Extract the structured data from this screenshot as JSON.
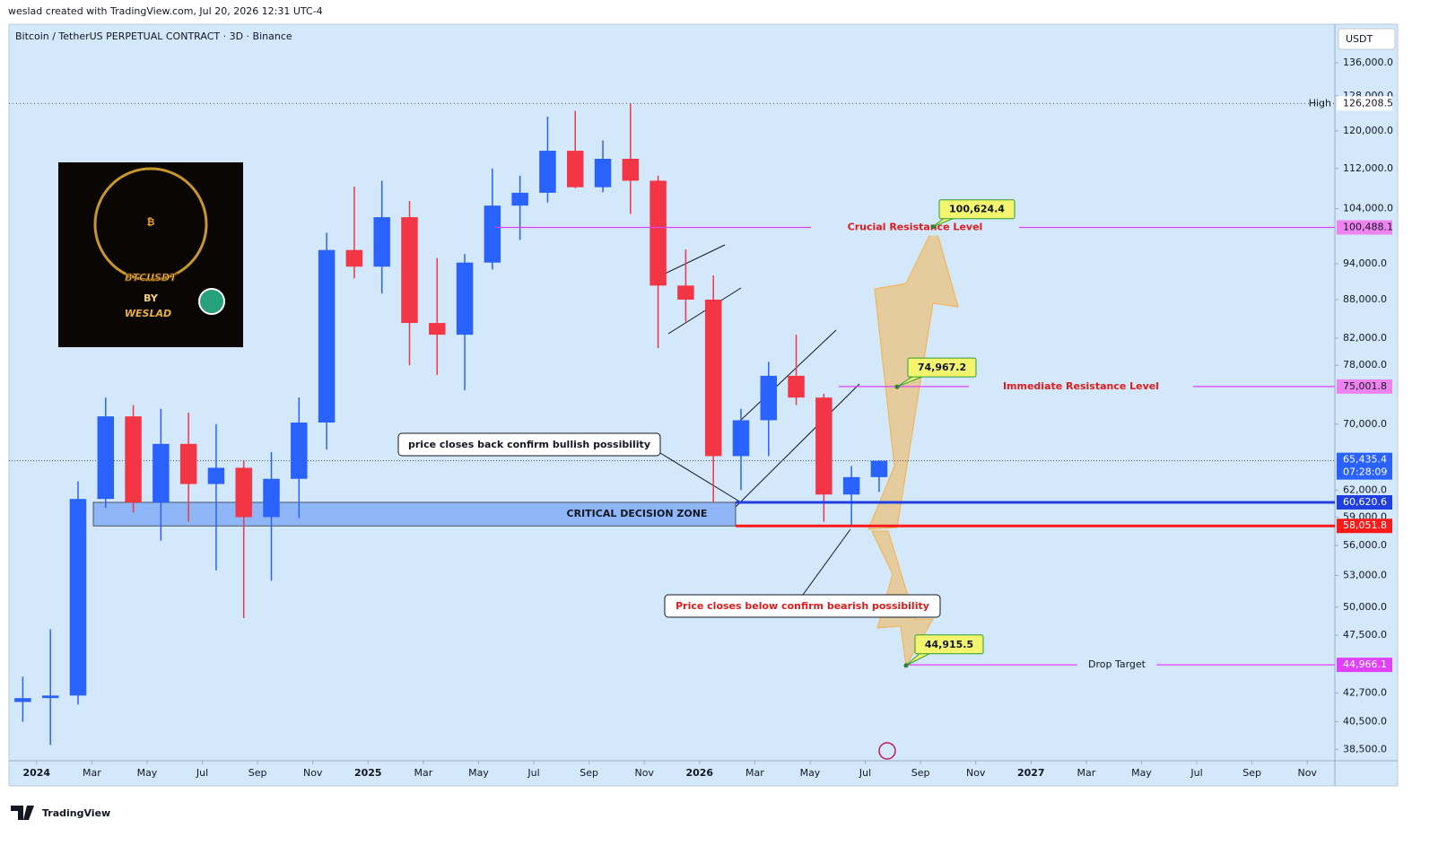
{
  "watermark": "weslad created with TradingView.com, Jul 20, 2026 12:31 UTC-4",
  "brand": "TradingView",
  "chart_data": {
    "type": "candlestick",
    "title": "Bitcoin / TetherUS PERPETUAL CONTRACT · 3D · Binance",
    "currency": "USDT",
    "log_scale": true,
    "grid": false,
    "up_color": "#2962ff",
    "down_color": "#f23645",
    "xlim": [
      "2023-12",
      "2027-12"
    ],
    "ylim": [
      37700,
      146000
    ],
    "xticks": [
      {
        "value": "2024-01",
        "label": "2024"
      },
      {
        "value": "2024-03",
        "label": "Mar"
      },
      {
        "value": "2024-05",
        "label": "May"
      },
      {
        "value": "2024-07",
        "label": "Jul"
      },
      {
        "value": "2024-09",
        "label": "Sep"
      },
      {
        "value": "2024-11",
        "label": "Nov"
      },
      {
        "value": "2025-01",
        "label": "2025"
      },
      {
        "value": "2025-03",
        "label": "Mar"
      },
      {
        "value": "2025-05",
        "label": "May"
      },
      {
        "value": "2025-07",
        "label": "Jul"
      },
      {
        "value": "2025-09",
        "label": "Sep"
      },
      {
        "value": "2025-11",
        "label": "Nov"
      },
      {
        "value": "2026-01",
        "label": "2026"
      },
      {
        "value": "2026-03",
        "label": "Mar"
      },
      {
        "value": "2026-05",
        "label": "May"
      },
      {
        "value": "2026-07",
        "label": "Jul"
      },
      {
        "value": "2026-09",
        "label": "Sep"
      },
      {
        "value": "2026-11",
        "label": "Nov"
      },
      {
        "value": "2027-01",
        "label": "2027"
      },
      {
        "value": "2027-03",
        "label": "Mar"
      },
      {
        "value": "2027-05",
        "label": "May"
      },
      {
        "value": "2027-07",
        "label": "Jul"
      },
      {
        "value": "2027-09",
        "label": "Sep"
      },
      {
        "value": "2027-11",
        "label": "Nov"
      }
    ],
    "yticks": [
      {
        "value": 136000,
        "label": "136,000.0"
      },
      {
        "value": 128000,
        "label": "128,000.0"
      },
      {
        "value": 120000,
        "label": "120,000.0"
      },
      {
        "value": 112000,
        "label": "112,000.0"
      },
      {
        "value": 104000,
        "label": "104,000.0"
      },
      {
        "value": 94000,
        "label": "94,000.0"
      },
      {
        "value": 88000,
        "label": "88,000.0"
      },
      {
        "value": 82000,
        "label": "82,000.0"
      },
      {
        "value": 78000,
        "label": "78,000.0"
      },
      {
        "value": 70000,
        "label": "70,000.0"
      },
      {
        "value": 62000,
        "label": "62,000.0"
      },
      {
        "value": 59000,
        "label": "59,000.0"
      },
      {
        "value": 56000,
        "label": "56,000.0"
      },
      {
        "value": 53000,
        "label": "53,000.0"
      },
      {
        "value": 50000,
        "label": "50,000.0"
      },
      {
        "value": 47500,
        "label": "47,500.0"
      },
      {
        "value": 42700,
        "label": "42,700.0"
      },
      {
        "value": 40500,
        "label": "40,500.0"
      },
      {
        "value": 38500,
        "label": "38,500.0"
      }
    ],
    "x": [
      "2023-12",
      "2024-01",
      "2024-02",
      "2024-03",
      "2024-04",
      "2024-05",
      "2024-06",
      "2024-07",
      "2024-08",
      "2024-09",
      "2024-10",
      "2024-11",
      "2024-12",
      "2025-01",
      "2025-02",
      "2025-03",
      "2025-04",
      "2025-05",
      "2025-06",
      "2025-07",
      "2025-08",
      "2025-09",
      "2025-10",
      "2025-11",
      "2025-12",
      "2026-01",
      "2026-02",
      "2026-03",
      "2026-04",
      "2026-05",
      "2026-06",
      "2026-07"
    ],
    "open": [
      42000,
      42300,
      42500,
      61000,
      71000,
      60600,
      67500,
      62700,
      64600,
      59000,
      63300,
      70200,
      96400,
      93500,
      102400,
      84300,
      82500,
      94200,
      104600,
      107100,
      115700,
      108200,
      114000,
      109500,
      90300,
      88000,
      66000,
      70500,
      76500,
      73500,
      61500,
      63500
    ],
    "high": [
      44000,
      48000,
      63000,
      73500,
      72500,
      72000,
      71500,
      70000,
      65500,
      66500,
      73500,
      99500,
      108300,
      109500,
      105500,
      95000,
      95700,
      112000,
      110500,
      123200,
      124500,
      117900,
      126200,
      110500,
      96500,
      92000,
      72000,
      78500,
      82500,
      74000,
      64800,
      65500
    ],
    "low": [
      40500,
      38800,
      41800,
      60000,
      59500,
      56500,
      58500,
      53500,
      49000,
      52500,
      58900,
      66800,
      91500,
      89000,
      78000,
      76600,
      74500,
      93000,
      98200,
      105200,
      108000,
      107200,
      103000,
      80500,
      84500,
      60600,
      62000,
      66000,
      72500,
      58500,
      58000,
      61800
    ],
    "close": [
      42300,
      42500,
      61000,
      71000,
      60600,
      67500,
      62700,
      64600,
      59000,
      63300,
      70200,
      96400,
      93500,
      102400,
      84300,
      82500,
      94200,
      104600,
      107100,
      115700,
      108200,
      114000,
      109500,
      90300,
      88000,
      66000,
      70500,
      76500,
      73500,
      61500,
      63500,
      65435.4
    ],
    "high_mark": {
      "name": "High",
      "value": 126208.5,
      "label": "126,208.5"
    },
    "last_price": {
      "value": 65435.4,
      "label": "65,435.4",
      "countdown": "07:28:09"
    },
    "zone": {
      "label": "CRITICAL DECISION ZONE",
      "top": {
        "value": 60620.6,
        "label": "60,620.6"
      },
      "bottom": {
        "value": 58051.8,
        "label": "58,051.8"
      }
    },
    "levels": [
      {
        "name": "Crucial Resistance Level",
        "value": 100488.1,
        "label": "100,488.1",
        "color": "#e040fb"
      },
      {
        "name": "Immediate Resistance Level",
        "value": 75001.8,
        "label": "75,001.8",
        "color": "#e040fb"
      },
      {
        "name": "Drop Target",
        "value": 44966.1,
        "label": "44,966.1",
        "color": "#e040fb"
      }
    ],
    "callouts": [
      {
        "value": 100624.4,
        "label": "100,624.4"
      },
      {
        "value": 74967.2,
        "label": "74,967.2"
      },
      {
        "value": 44915.5,
        "label": "44,915.5"
      }
    ],
    "notes": [
      "price closes back confirm bullish possibility",
      "Price closes below confirm bearish possibility"
    ],
    "logo": {
      "title": "BTCUSDT",
      "by": "BY",
      "author": "WESLAD"
    }
  }
}
